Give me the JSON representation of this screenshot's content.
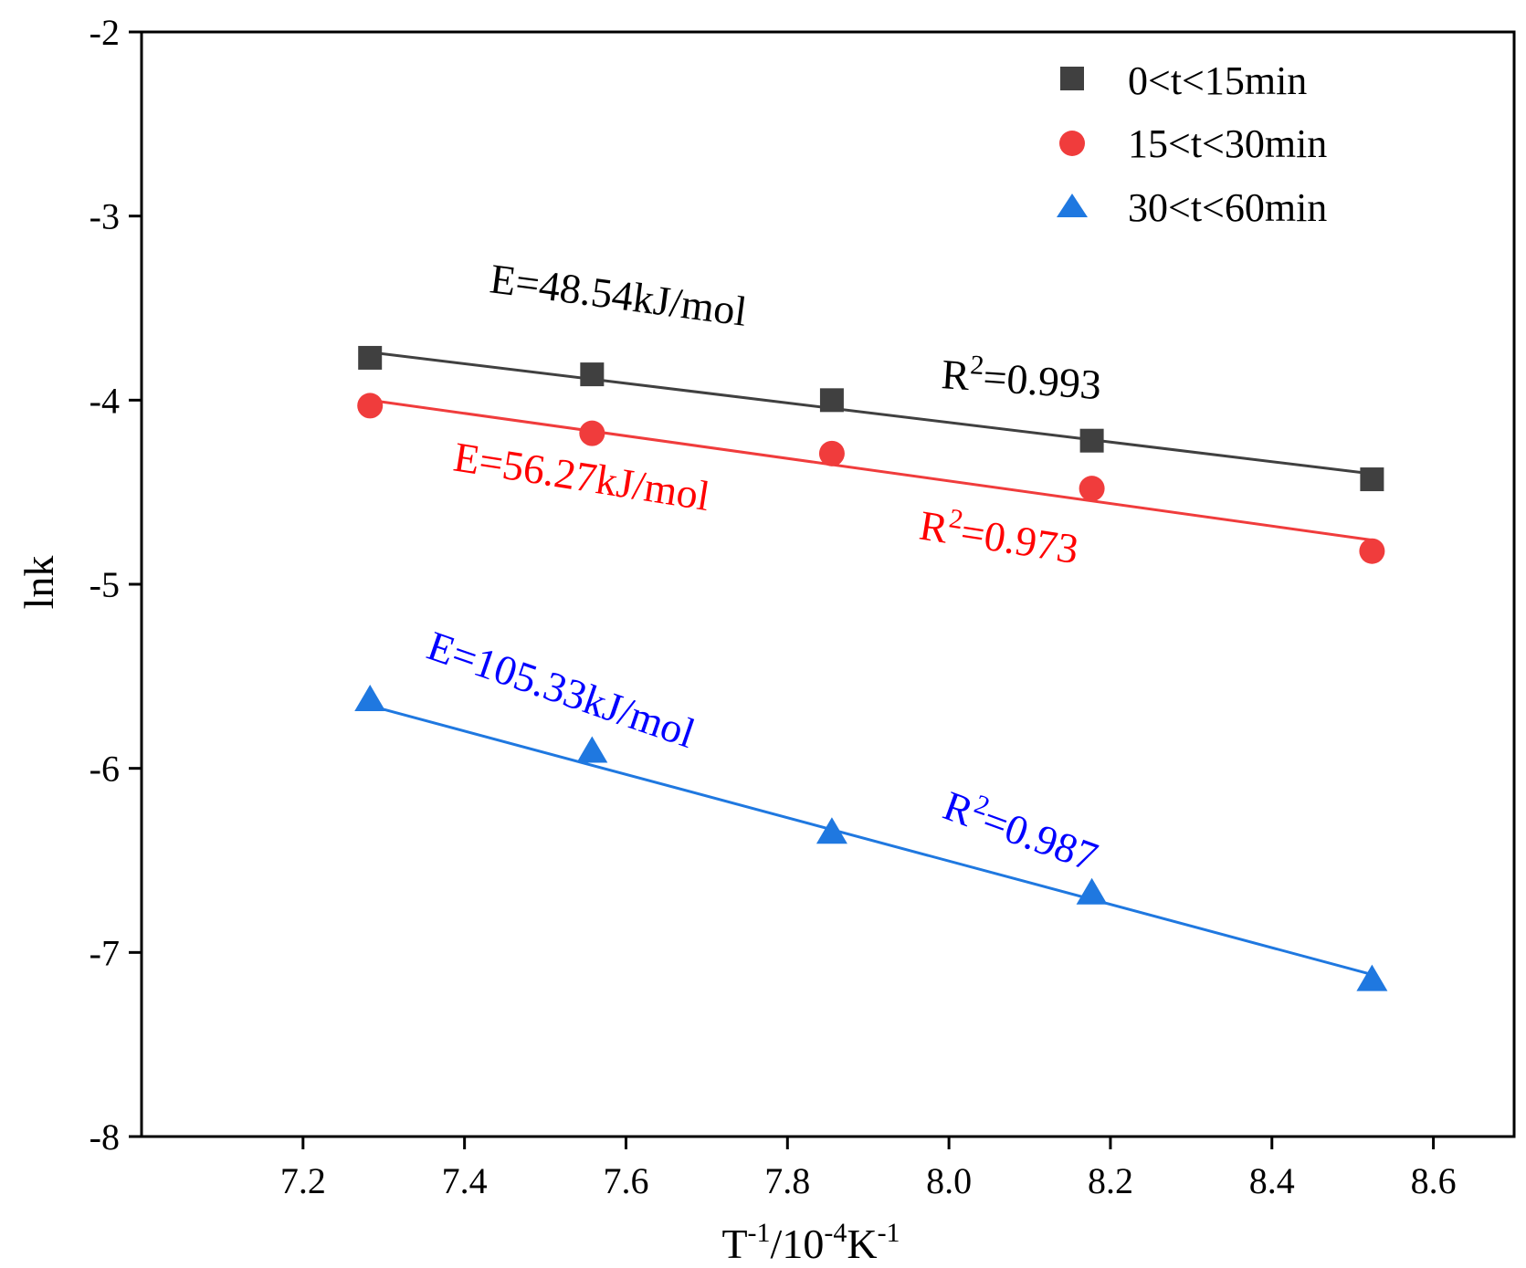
{
  "chart_data": {
    "type": "scatter",
    "title": "",
    "xlabel": "T-1/10-4K-1",
    "xlabel_parts": {
      "t": "T",
      "t_exp": "-1",
      "mid": "/10",
      "mid_exp": "-4",
      "k": "K",
      "k_exp": "-1"
    },
    "ylabel": "lnk",
    "xlim": [
      7.0,
      8.7
    ],
    "ylim": [
      -8,
      -2
    ],
    "xticks": [
      "7.2",
      "7.4",
      "7.6",
      "7.8",
      "8.0",
      "8.2",
      "8.4",
      "8.6"
    ],
    "yticks": [
      "-2",
      "-3",
      "-4",
      "-5",
      "-6",
      "-7",
      "-8"
    ],
    "legend_position": "top-right",
    "series": [
      {
        "name": "0<t<15min",
        "marker": "square",
        "color": "#404040",
        "x": [
          7.283,
          7.558,
          7.855,
          8.177,
          8.524
        ],
        "y": [
          -3.77,
          -3.86,
          -4.0,
          -4.22,
          -4.43
        ],
        "fit": {
          "x": [
            7.283,
            8.524
          ],
          "y": [
            -3.74,
            -4.4
          ]
        },
        "annotation": {
          "energy": "E=48.54kJ/mol",
          "r2_prefix": "R",
          "r2_exp": "2",
          "r2_value": "=0.993",
          "color": "#000000"
        }
      },
      {
        "name": "15<t<30min",
        "marker": "circle",
        "color": "#f03c3c",
        "x": [
          7.283,
          7.558,
          7.855,
          8.177,
          8.524
        ],
        "y": [
          -4.03,
          -4.18,
          -4.29,
          -4.48,
          -4.82
        ],
        "fit": {
          "x": [
            7.283,
            8.524
          ],
          "y": [
            -4.0,
            -4.76
          ]
        },
        "annotation": {
          "energy": "E=56.27kJ/mol",
          "r2_prefix": "R",
          "r2_exp": "2",
          "r2_value": "=0.973",
          "color": "#ff0000"
        }
      },
      {
        "name": "30<t<60min",
        "marker": "triangle",
        "color": "#1f78e0",
        "x": [
          7.283,
          7.558,
          7.855,
          8.177,
          8.524
        ],
        "y": [
          -5.63,
          -5.91,
          -6.35,
          -6.68,
          -7.15
        ],
        "fit": {
          "x": [
            7.283,
            8.524
          ],
          "y": [
            -5.66,
            -7.12
          ]
        },
        "annotation": {
          "energy": "E=105.33kJ/mol",
          "r2_prefix": "R",
          "r2_exp": "2",
          "r2_value": "=0.987",
          "color": "#0000ff"
        }
      }
    ]
  }
}
